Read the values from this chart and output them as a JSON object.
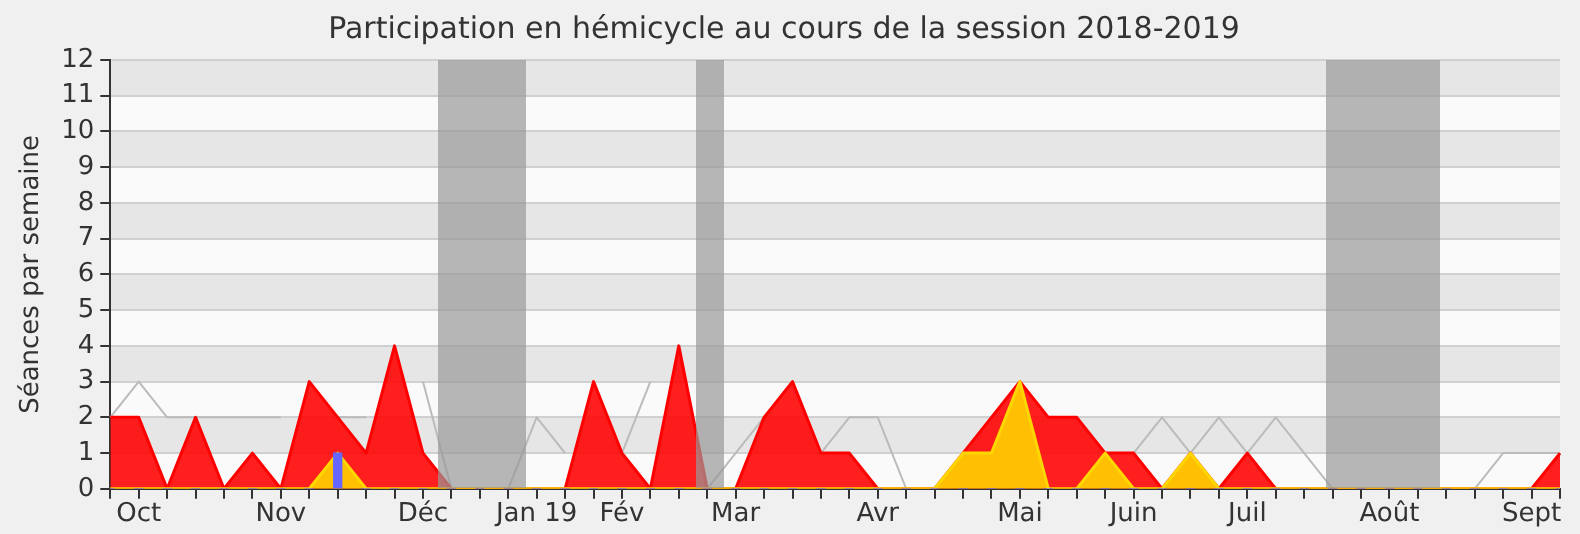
{
  "chart_data": {
    "type": "area",
    "title": "Participation en hémicycle au cours de la session 2018-2019",
    "ylabel": "Séances par semaine",
    "categories": [
      null,
      "Oct",
      null,
      null,
      null,
      null,
      "Nov",
      null,
      null,
      null,
      null,
      "Déc",
      null,
      null,
      null,
      "Jan 19",
      null,
      null,
      "Fév",
      null,
      null,
      null,
      "Mar",
      null,
      null,
      null,
      null,
      "Avr",
      null,
      null,
      null,
      null,
      "Mai",
      null,
      null,
      null,
      "Juin",
      null,
      null,
      null,
      "Juil",
      null,
      null,
      null,
      null,
      "Août",
      null,
      null,
      null,
      null,
      "Sept",
      null
    ],
    "ylim": [
      0,
      12
    ],
    "yticks": [
      0,
      1,
      2,
      3,
      4,
      5,
      6,
      7,
      8,
      9,
      10,
      11,
      12
    ],
    "grid": "y",
    "series": [
      {
        "type": "line",
        "color": "#bbbbbb",
        "values": [
          2,
          3,
          2,
          2,
          2,
          2,
          2,
          null,
          2,
          2,
          null,
          3,
          0,
          0,
          0,
          2,
          1,
          null,
          1,
          3,
          null,
          0,
          1,
          2,
          null,
          1,
          2,
          2,
          0,
          0,
          null,
          null,
          null,
          null,
          null,
          null,
          1,
          2,
          1,
          2,
          1,
          2,
          1,
          0,
          0,
          0,
          0,
          0,
          0,
          1,
          1,
          1
        ]
      },
      {
        "color": "#ff0000",
        "values": [
          2,
          2,
          0,
          2,
          0,
          1,
          0,
          3,
          2,
          1,
          4,
          1,
          0,
          0,
          0,
          0,
          0,
          3,
          1,
          0,
          4,
          0,
          0,
          2,
          3,
          1,
          1,
          0,
          0,
          0,
          1,
          2,
          3,
          2,
          2,
          1,
          1,
          0,
          1,
          0,
          1,
          0,
          0,
          0,
          0,
          0,
          0,
          0,
          0,
          0,
          0,
          1
        ]
      },
      {
        "color": "#ffd700",
        "values": [
          0,
          0,
          0,
          0,
          0,
          0,
          0,
          0,
          1,
          0,
          0,
          0,
          0,
          0,
          0,
          0,
          0,
          0,
          0,
          0,
          0,
          0,
          0,
          0,
          0,
          0,
          0,
          0,
          0,
          0,
          1,
          1,
          3,
          0,
          0,
          1,
          0,
          0,
          1,
          0,
          0,
          0,
          0,
          0,
          0,
          0,
          0,
          0,
          0,
          0,
          0,
          0
        ]
      },
      {
        "type": "bar",
        "color": "#6666ff",
        "values": [
          0,
          0,
          0,
          0,
          0,
          0,
          0,
          0,
          1,
          0,
          0,
          0,
          0,
          0,
          0,
          0,
          0,
          0,
          0,
          0,
          0,
          0,
          0,
          0,
          0,
          0,
          0,
          0,
          0,
          0,
          0,
          0,
          0,
          0,
          0,
          0,
          0,
          0,
          0,
          0,
          0,
          0,
          0,
          0,
          0,
          0,
          0,
          0,
          0,
          0,
          0,
          0
        ]
      }
    ]
  }
}
